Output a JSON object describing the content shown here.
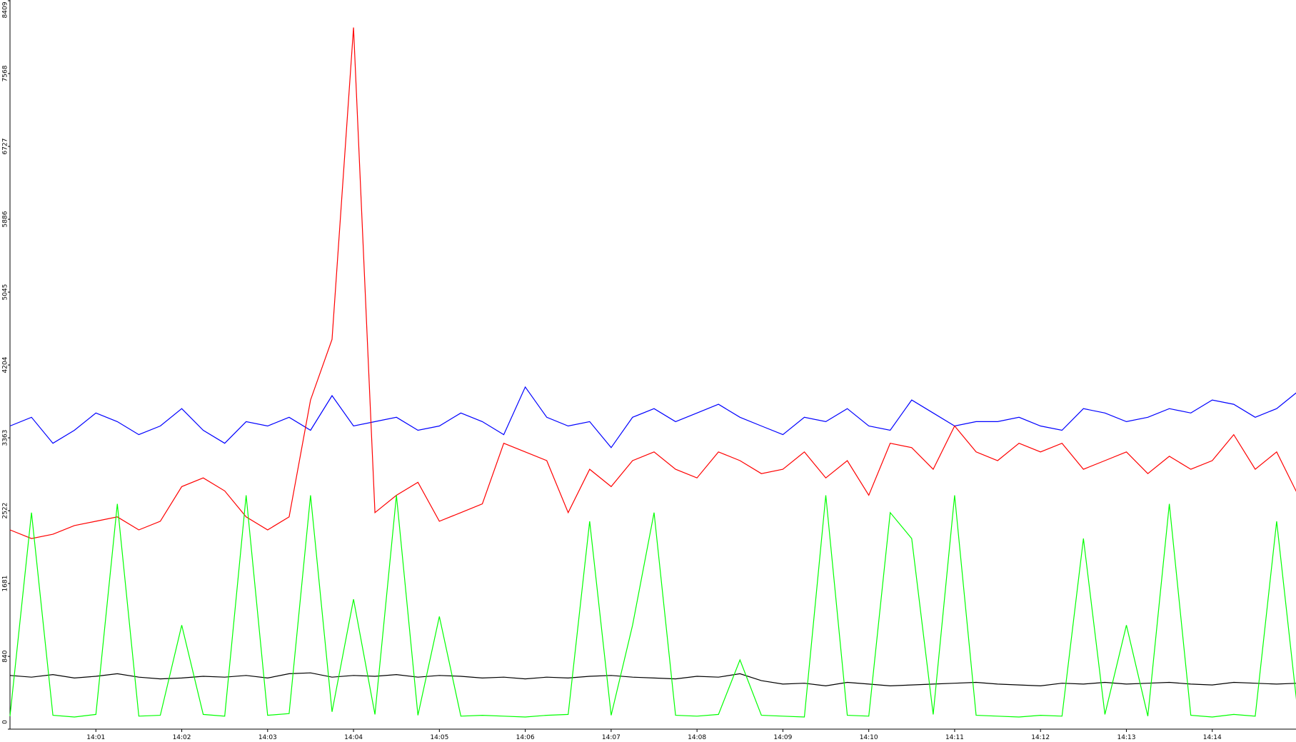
{
  "chart_data": {
    "type": "line",
    "x": [
      0,
      0.25,
      0.5,
      0.75,
      1,
      1.25,
      1.5,
      1.75,
      2,
      2.25,
      2.5,
      2.75,
      3,
      3.25,
      3.5,
      3.75,
      4,
      4.25,
      4.5,
      4.75,
      5,
      5.25,
      5.5,
      5.75,
      6,
      6.25,
      6.5,
      6.75,
      7,
      7.25,
      7.5,
      7.75,
      8,
      8.25,
      8.5,
      8.75,
      9,
      9.25,
      9.5,
      9.75,
      10,
      10.25,
      10.5,
      10.75,
      11,
      11.25,
      11.5,
      11.75,
      12,
      12.25,
      12.5,
      12.75,
      13,
      13.25,
      13.5,
      13.75,
      14,
      14.25,
      14.5,
      14.75,
      15
    ],
    "series": [
      {
        "color": "#0000ff",
        "values": [
          3500,
          3600,
          3300,
          3450,
          3650,
          3550,
          3400,
          3500,
          3700,
          3450,
          3300,
          3550,
          3500,
          3600,
          3450,
          3850,
          3500,
          3550,
          3600,
          3450,
          3500,
          3650,
          3550,
          3400,
          3950,
          3600,
          3500,
          3550,
          3250,
          3600,
          3700,
          3550,
          3650,
          3750,
          3600,
          3500,
          3400,
          3600,
          3550,
          3700,
          3500,
          3450,
          3800,
          3650,
          3500,
          3550,
          3550,
          3600,
          3500,
          3450,
          3700,
          3650,
          3550,
          3600,
          3700,
          3650,
          3800,
          3750,
          3600,
          3700,
          3900
        ]
      },
      {
        "color": "#ff0000",
        "values": [
          2300,
          2200,
          2250,
          2350,
          2400,
          2450,
          2300,
          2400,
          2800,
          2900,
          2750,
          2450,
          2300,
          2450,
          3800,
          4500,
          8100,
          2500,
          2700,
          2850,
          2400,
          2500,
          2600,
          3300,
          3200,
          3100,
          2500,
          3000,
          2800,
          3100,
          3200,
          3000,
          2900,
          3200,
          3100,
          2950,
          3000,
          3200,
          2900,
          3100,
          2700,
          3300,
          3250,
          3000,
          3500,
          3200,
          3100,
          3300,
          3200,
          3300,
          3000,
          3100,
          3200,
          2950,
          3150,
          3000,
          3100,
          3400,
          3000,
          3200,
          2700
        ]
      },
      {
        "color": "#000000",
        "values": [
          620,
          600,
          630,
          590,
          610,
          640,
          600,
          580,
          590,
          610,
          600,
          620,
          590,
          640,
          650,
          600,
          620,
          610,
          630,
          600,
          620,
          610,
          590,
          600,
          580,
          600,
          590,
          610,
          620,
          600,
          590,
          580,
          610,
          600,
          640,
          560,
          520,
          530,
          500,
          540,
          520,
          500,
          510,
          520,
          530,
          540,
          520,
          510,
          500,
          530,
          520,
          540,
          520,
          530,
          540,
          520,
          510,
          540,
          530,
          520,
          530
        ]
      },
      {
        "color": "#00ff00",
        "values": [
          150,
          2500,
          160,
          140,
          170,
          2600,
          150,
          160,
          1200,
          170,
          150,
          2700,
          160,
          180,
          2700,
          200,
          1500,
          170,
          2700,
          160,
          1300,
          150,
          160,
          150,
          140,
          160,
          170,
          2400,
          160,
          1200,
          2500,
          160,
          150,
          170,
          800,
          160,
          150,
          140,
          2700,
          160,
          150,
          2500,
          2200,
          170,
          2700,
          160,
          150,
          140,
          160,
          150,
          2200,
          170,
          1200,
          150,
          2600,
          160,
          140,
          170,
          150,
          2400,
          160
        ]
      }
    ],
    "xlim": [
      0,
      15
    ],
    "xticks": [
      {
        "value": 1,
        "label": "14:01"
      },
      {
        "value": 2,
        "label": "14:02"
      },
      {
        "value": 3,
        "label": "14:03"
      },
      {
        "value": 4,
        "label": "14:04"
      },
      {
        "value": 5,
        "label": "14:05"
      },
      {
        "value": 6,
        "label": "14:06"
      },
      {
        "value": 7,
        "label": "14:07"
      },
      {
        "value": 8,
        "label": "14:08"
      },
      {
        "value": 9,
        "label": "14:09"
      },
      {
        "value": 10,
        "label": "14:10"
      },
      {
        "value": 11,
        "label": "14:11"
      },
      {
        "value": 12,
        "label": "14:12"
      },
      {
        "value": 13,
        "label": "14:13"
      },
      {
        "value": 14,
        "label": "14:14"
      }
    ],
    "ylim": [
      0,
      8409
    ],
    "yticks": [
      0,
      840,
      1681,
      2522,
      3363,
      4204,
      5045,
      5886,
      6727,
      7568,
      8409
    ]
  }
}
